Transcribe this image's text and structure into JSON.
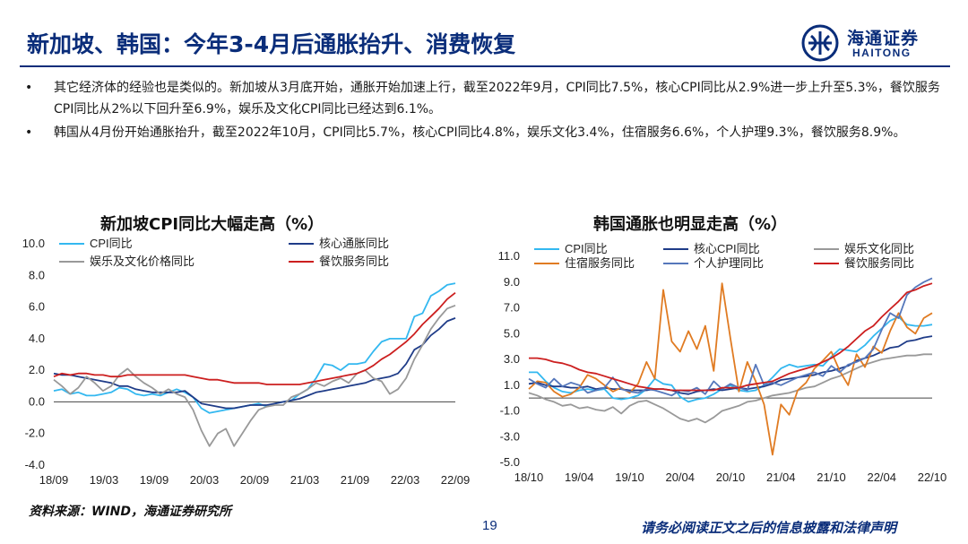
{
  "page": {
    "title": "新加坡、韩国：今年3-4月后通胀抬升、消费恢复",
    "logo_zh": "海通证券",
    "logo_en": "HAITONG",
    "bullet_symbol": "•",
    "bullets": [
      "其它经济体的经验也是类似的。新加坡从3月底开始，通胀开始加速上行，截至2022年9月，CPI同比7.5%，核心CPI同比从2.9%进一步上升至5.3%，餐饮服务CPI同比从2%以下回升至6.9%，娱乐及文化CPI同比已经达到6.1%。",
      "韩国从4月份开始通胀抬升，截至2022年10月，CPI同比5.7%，核心CPI同比4.8%，娱乐文化3.4%，住宿服务6.6%，个人护理9.3%，餐饮服务8.9%。"
    ],
    "source": "资料来源：WIND，海通证券研究所",
    "page_number": "19",
    "disclaimer": "请务必阅读正文之后的信息披露和法律声明"
  },
  "colors": {
    "brand": "#0a2d7a",
    "cpi": "#33b8f0",
    "core": "#1f3c88",
    "culture": "#999999",
    "food": "#cc1f1f",
    "accommodation": "#e07b22",
    "personal_care": "#5577bb"
  },
  "chart_data": [
    {
      "type": "line",
      "title": "新加坡CPI同比大幅走高（%）",
      "xlabel": "",
      "ylabel": "",
      "ylim": [
        -4.0,
        10.0
      ],
      "yticks": [
        "10.0",
        "8.0",
        "6.0",
        "4.0",
        "2.0",
        "0.0",
        "-2.0",
        "-4.0"
      ],
      "ytick_values": [
        10,
        8,
        6,
        4,
        2,
        0,
        -2,
        -4
      ],
      "xticks": [
        "18/09",
        "19/03",
        "19/09",
        "20/03",
        "20/09",
        "21/03",
        "21/09",
        "22/03",
        "22/09"
      ],
      "xtick_values": [
        0,
        6,
        12,
        18,
        24,
        30,
        36,
        42,
        48
      ],
      "xlim": [
        0,
        48
      ],
      "legend": "top, two columns",
      "series": [
        {
          "name": "CPI同比",
          "color": "#33b8f0",
          "values": [
            0.7,
            0.8,
            0.5,
            0.6,
            0.4,
            0.4,
            0.5,
            0.6,
            0.9,
            0.8,
            0.5,
            0.4,
            0.5,
            0.4,
            0.6,
            0.8,
            0.6,
            0.3,
            -0.4,
            -0.7,
            -0.6,
            -0.5,
            -0.4,
            -0.3,
            -0.2,
            -0.1,
            -0.3,
            -0.1,
            0.0,
            0.1,
            0.5,
            0.8,
            1.5,
            2.4,
            2.3,
            2.0,
            2.4,
            2.4,
            2.5,
            3.2,
            3.8,
            4.0,
            4.0,
            4.0,
            5.4,
            5.6,
            6.7,
            7.0,
            7.4,
            7.5
          ]
        },
        {
          "name": "核心通胀同比",
          "color": "#1f3c88",
          "values": [
            1.8,
            1.7,
            1.7,
            1.6,
            1.5,
            1.4,
            1.3,
            1.2,
            1.0,
            1.0,
            0.8,
            0.7,
            0.6,
            0.6,
            0.6,
            0.6,
            0.7,
            0.3,
            -0.1,
            -0.2,
            -0.3,
            -0.4,
            -0.4,
            -0.3,
            -0.2,
            -0.2,
            -0.2,
            -0.1,
            0.0,
            0.1,
            0.2,
            0.4,
            0.6,
            0.7,
            0.8,
            0.9,
            1.0,
            1.1,
            1.2,
            1.4,
            1.5,
            1.6,
            1.8,
            2.4,
            3.3,
            3.6,
            4.2,
            4.6,
            5.1,
            5.3
          ]
        },
        {
          "name": "娱乐及文化价格同比",
          "color": "#999999",
          "values": [
            1.4,
            1.0,
            0.5,
            0.9,
            1.6,
            1.2,
            0.7,
            1.0,
            1.7,
            2.1,
            1.6,
            1.2,
            0.9,
            0.5,
            0.8,
            0.5,
            0.3,
            -0.5,
            -1.8,
            -2.8,
            -2.0,
            -1.7,
            -2.8,
            -2.0,
            -1.2,
            -0.5,
            -0.3,
            -0.2,
            -0.2,
            0.3,
            0.5,
            0.8,
            1.2,
            1.0,
            1.3,
            1.5,
            1.2,
            1.8,
            2.0,
            1.5,
            1.3,
            0.5,
            0.8,
            1.5,
            2.7,
            3.6,
            4.6,
            5.3,
            5.9,
            6.1
          ]
        },
        {
          "name": "餐饮服务同比",
          "color": "#cc1f1f",
          "values": [
            1.6,
            1.8,
            1.7,
            1.8,
            1.8,
            1.7,
            1.7,
            1.6,
            1.6,
            1.7,
            1.7,
            1.7,
            1.7,
            1.7,
            1.7,
            1.7,
            1.7,
            1.6,
            1.5,
            1.4,
            1.4,
            1.3,
            1.2,
            1.2,
            1.2,
            1.2,
            1.1,
            1.1,
            1.1,
            1.1,
            1.1,
            1.2,
            1.3,
            1.4,
            1.5,
            1.6,
            1.7,
            1.8,
            2.0,
            2.3,
            2.7,
            3.0,
            3.4,
            3.8,
            4.3,
            4.9,
            5.4,
            5.9,
            6.5,
            6.9
          ]
        }
      ]
    },
    {
      "type": "line",
      "title": "韩国通胀也明显走高（%）",
      "xlabel": "",
      "ylabel": "",
      "ylim": [
        -5.0,
        11.0
      ],
      "yticks": [
        "11.0",
        "9.0",
        "7.0",
        "5.0",
        "3.0",
        "1.0",
        "-1.0",
        "-3.0",
        "-5.0"
      ],
      "ytick_values": [
        11,
        9,
        7,
        5,
        3,
        1,
        -1,
        -3,
        -5
      ],
      "xticks": [
        "18/10",
        "19/04",
        "19/10",
        "20/04",
        "20/10",
        "21/04",
        "21/10",
        "22/04",
        "22/10"
      ],
      "xtick_values": [
        0,
        6,
        12,
        18,
        24,
        30,
        36,
        42,
        48
      ],
      "xlim": [
        0,
        48
      ],
      "legend": "top, three columns",
      "series": [
        {
          "name": "CPI同比",
          "color": "#33b8f0",
          "values": [
            2.0,
            2.0,
            1.3,
            0.8,
            0.5,
            0.4,
            0.6,
            0.7,
            0.6,
            0.7,
            0.0,
            -0.1,
            0.0,
            0.2,
            0.7,
            1.5,
            1.1,
            1.0,
            0.1,
            -0.3,
            -0.1,
            0.0,
            0.3,
            0.7,
            1.0,
            0.6,
            0.5,
            0.6,
            1.0,
            1.6,
            2.3,
            2.6,
            2.4,
            2.5,
            2.6,
            2.5,
            3.2,
            3.8,
            3.7,
            3.6,
            4.1,
            4.8,
            5.4,
            6.0,
            6.3,
            5.7,
            5.6,
            5.6,
            5.7
          ]
        },
        {
          "name": "核心CPI同比",
          "color": "#1f3c88",
          "values": [
            1.1,
            1.2,
            1.0,
            0.9,
            0.9,
            0.8,
            0.8,
            0.9,
            0.7,
            0.8,
            0.7,
            0.7,
            0.6,
            0.6,
            0.6,
            0.7,
            0.7,
            0.6,
            0.4,
            0.3,
            0.5,
            0.6,
            0.7,
            0.6,
            0.7,
            0.8,
            0.7,
            0.8,
            0.9,
            1.1,
            1.4,
            1.5,
            1.6,
            1.7,
            1.8,
            2.0,
            2.1,
            2.3,
            2.5,
            2.9,
            3.1,
            3.3,
            3.6,
            3.9,
            4.0,
            4.4,
            4.5,
            4.7,
            4.8
          ]
        },
        {
          "name": "娱乐文化同比",
          "color": "#999999",
          "values": [
            0.4,
            0.2,
            -0.1,
            -0.3,
            -0.6,
            -0.5,
            -0.8,
            -0.7,
            -0.9,
            -1.0,
            -0.7,
            -1.2,
            -0.6,
            -0.3,
            -0.2,
            -0.5,
            -0.8,
            -1.2,
            -1.6,
            -1.8,
            -1.6,
            -1.9,
            -1.5,
            -1.0,
            -0.8,
            -0.6,
            -0.3,
            -0.2,
            0.0,
            0.2,
            0.3,
            0.4,
            0.6,
            0.8,
            0.9,
            1.2,
            1.5,
            1.7,
            2.0,
            2.3,
            2.6,
            2.8,
            3.0,
            3.1,
            3.2,
            3.3,
            3.3,
            3.4,
            3.4
          ]
        },
        {
          "name": "住宿服务同比",
          "color": "#e07b22",
          "values": [
            0.7,
            1.3,
            1.2,
            0.5,
            0.1,
            0.3,
            0.8,
            1.8,
            1.5,
            1.0,
            0.5,
            0.8,
            0.4,
            1.1,
            2.8,
            1.5,
            8.4,
            4.4,
            3.6,
            5.2,
            3.8,
            5.6,
            2.1,
            8.9,
            4.6,
            0.5,
            2.8,
            1.3,
            -0.5,
            -4.4,
            -0.5,
            -1.3,
            0.6,
            1.2,
            2.3,
            2.9,
            3.6,
            2.1,
            1.0,
            3.4,
            2.4,
            4.0,
            3.5,
            5.2,
            6.6,
            5.5,
            5.0,
            6.2,
            6.6
          ]
        },
        {
          "name": "个人护理同比",
          "color": "#5577bb",
          "values": [
            1.5,
            1.1,
            0.8,
            1.5,
            0.9,
            1.2,
            1.0,
            0.4,
            0.6,
            0.8,
            1.6,
            0.7,
            0.5,
            0.4,
            0.7,
            0.6,
            0.4,
            0.2,
            0.6,
            0.5,
            0.8,
            0.3,
            1.3,
            0.7,
            1.1,
            0.8,
            0.6,
            2.6,
            1.0,
            1.2,
            1.0,
            1.3,
            1.6,
            1.8,
            2.0,
            1.7,
            2.5,
            2.0,
            2.6,
            2.8,
            3.1,
            3.8,
            5.3,
            6.6,
            6.2,
            8.0,
            8.6,
            9.0,
            9.3
          ]
        },
        {
          "name": "餐饮服务同比",
          "color": "#cc1f1f",
          "values": [
            3.1,
            3.1,
            3.0,
            2.8,
            2.7,
            2.5,
            2.2,
            2.0,
            1.9,
            1.7,
            1.5,
            1.3,
            1.1,
            0.9,
            0.8,
            0.7,
            0.7,
            0.6,
            0.6,
            0.6,
            0.6,
            0.6,
            0.6,
            0.8,
            0.8,
            0.8,
            1.0,
            1.1,
            1.2,
            1.3,
            1.6,
            1.9,
            2.1,
            2.3,
            2.5,
            2.8,
            3.1,
            3.5,
            4.0,
            4.6,
            5.2,
            5.6,
            6.3,
            6.9,
            7.5,
            8.2,
            8.4,
            8.7,
            8.9
          ]
        }
      ]
    }
  ]
}
